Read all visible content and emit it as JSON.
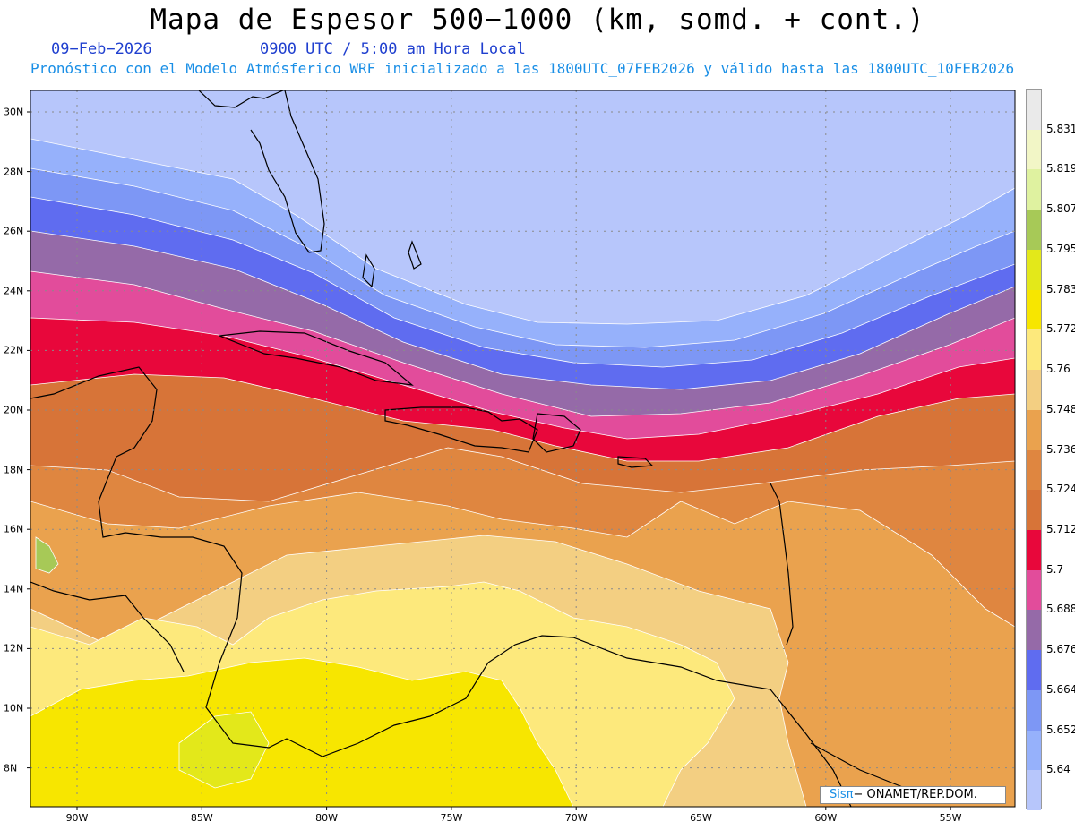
{
  "title": "Mapa de Espesor 500−1000 (km, somd. + cont.)",
  "date": "09−Feb−2026",
  "time": "0900 UTC / 5:00 am Hora Local",
  "info": "Pronóstico con el Modelo Atmósferico WRF inicializado a las 1800UTC_07FEB2026 y válido hasta las  1800UTC_10FEB2026",
  "credit": {
    "logo": "Sisπ",
    "org": "− ONAMET/REP.DOM."
  },
  "latitude_labels": [
    "30N",
    "28N",
    "26N",
    "24N",
    "22N",
    "20N",
    "18N",
    "16N",
    "14N",
    "12N",
    "10N",
    "8N"
  ],
  "longitude_labels": [
    "90W",
    "85W",
    "80W",
    "75W",
    "70W",
    "65W",
    "60W",
    "55W"
  ],
  "colorbar": {
    "labels": [
      "5.831",
      "5.819",
      "5.807",
      "5.795",
      "5.783",
      "5.772",
      "5.76",
      "5.748",
      "5.736",
      "5.724",
      "5.712",
      "5.7",
      "5.688",
      "5.676",
      "5.664",
      "5.652",
      "5.64"
    ],
    "colors_top_to_bottom": [
      "#eaeaea",
      "#f2f6c6",
      "#dff2a0",
      "#a7c957",
      "#e3e81a",
      "#f7e600",
      "#fde97c",
      "#f3cf82",
      "#eaa24e",
      "#df8640",
      "#d77438",
      "#e8073b",
      "#e24c9b",
      "#956aa8",
      "#5f6cf0",
      "#7d97f5",
      "#96b1fb",
      "#b7c6fb"
    ]
  },
  "map_colors": {
    "ocean": "#b7c6fb",
    "bands": [
      "#96b1fb",
      "#7d97f5",
      "#5f6cf0",
      "#956aa8",
      "#e24c9b",
      "#e8073b",
      "#d77438",
      "#df8640",
      "#eaa24e",
      "#f3cf82",
      "#fde97c",
      "#f7e600",
      "#e3e81a",
      "#a7c957"
    ]
  }
}
